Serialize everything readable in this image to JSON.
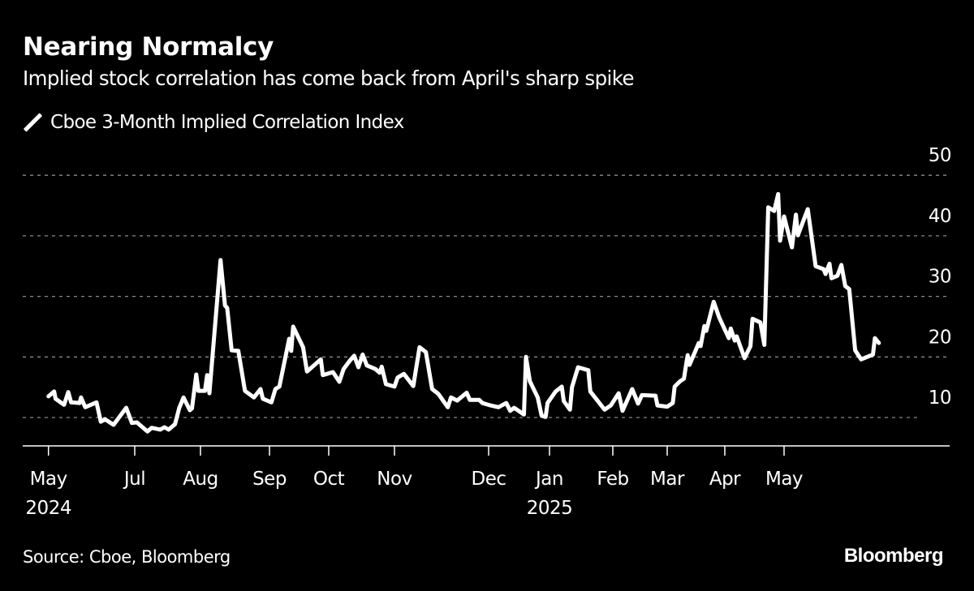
{
  "header": {
    "title": "Nearing Normalcy",
    "subtitle": "Implied stock correlation has come back from April's sharp spike"
  },
  "footer": {
    "source": "Source: Cboe, Bloomberg",
    "logo": "Bloomberg"
  },
  "chart_data": {
    "type": "line",
    "title": "Nearing Normalcy",
    "subtitle": "Implied stock correlation has come back from April's sharp spike",
    "xlabel": "",
    "ylabel": "",
    "ylim": [
      5.3,
      50
    ],
    "y_ticks": [
      10,
      20,
      30,
      40,
      50
    ],
    "y_axis_side": "right",
    "grid": "horizontal dotted",
    "legend_position": "top-left",
    "line_color": "#ffffff",
    "background_color": "#000000",
    "x_ticks": [
      {
        "date": "2024-05-01",
        "label": "May",
        "sublabel": "2024"
      },
      {
        "date": "2024-07-01",
        "label": "Jul",
        "sublabel": ""
      },
      {
        "date": "2024-08-01",
        "label": "Aug",
        "sublabel": ""
      },
      {
        "date": "2024-09-01",
        "label": "Sep",
        "sublabel": ""
      },
      {
        "date": "2024-10-01",
        "label": "Oct",
        "sublabel": ""
      },
      {
        "date": "2024-11-01",
        "label": "Nov",
        "sublabel": ""
      },
      {
        "date": "2024-12-01",
        "label": "Dec",
        "sublabel": ""
      },
      {
        "date": "2025-01-01",
        "label": "Jan",
        "sublabel": "2025"
      },
      {
        "date": "2025-02-01",
        "label": "Feb",
        "sublabel": ""
      },
      {
        "date": "2025-03-01",
        "label": "Mar",
        "sublabel": ""
      },
      {
        "date": "2025-04-01",
        "label": "Apr",
        "sublabel": ""
      },
      {
        "date": "2025-05-01",
        "label": "May",
        "sublabel": ""
      }
    ],
    "series": [
      {
        "name": "Cboe 3-Month Implied Correlation Index",
        "points": [
          [
            "2024-05-01",
            13.5
          ],
          [
            "2024-05-05",
            14.3
          ],
          [
            "2024-05-06",
            13.1
          ],
          [
            "2024-05-12",
            12.1
          ],
          [
            "2024-05-15",
            14.2
          ],
          [
            "2024-05-17",
            12.5
          ],
          [
            "2024-05-23",
            12.4
          ],
          [
            "2024-05-24",
            13.3
          ],
          [
            "2024-05-27",
            11.7
          ],
          [
            "2024-06-04",
            12.5
          ],
          [
            "2024-06-07",
            9.3
          ],
          [
            "2024-06-10",
            9.7
          ],
          [
            "2024-06-16",
            8.8
          ],
          [
            "2024-06-25",
            11.6
          ],
          [
            "2024-06-29",
            9.1
          ],
          [
            "2024-07-02",
            9.2
          ],
          [
            "2024-07-07",
            7.7
          ],
          [
            "2024-07-09",
            8.3
          ],
          [
            "2024-07-13",
            8.0
          ],
          [
            "2024-07-15",
            8.4
          ],
          [
            "2024-07-17",
            8.0
          ],
          [
            "2024-07-20",
            8.9
          ],
          [
            "2024-07-22",
            11.6
          ],
          [
            "2024-07-24",
            13.3
          ],
          [
            "2024-07-27",
            11.2
          ],
          [
            "2024-07-28",
            11.5
          ],
          [
            "2024-07-30",
            17.1
          ],
          [
            "2024-07-31",
            14.4
          ],
          [
            "2024-08-03",
            14.4
          ],
          [
            "2024-08-04",
            17.0
          ],
          [
            "2024-08-05",
            14.0
          ],
          [
            "2024-08-10",
            36.0
          ],
          [
            "2024-08-12",
            28.5
          ],
          [
            "2024-08-13",
            28.1
          ],
          [
            "2024-08-15",
            21.1
          ],
          [
            "2024-08-18",
            21.0
          ],
          [
            "2024-08-21",
            14.4
          ],
          [
            "2024-08-25",
            13.3
          ],
          [
            "2024-08-28",
            14.7
          ],
          [
            "2024-08-29",
            13.1
          ],
          [
            "2024-09-02",
            12.5
          ],
          [
            "2024-09-04",
            14.7
          ],
          [
            "2024-09-06",
            15.1
          ],
          [
            "2024-09-11",
            23.0
          ],
          [
            "2024-09-12",
            21.0
          ],
          [
            "2024-09-13",
            25.0
          ],
          [
            "2024-09-18",
            21.6
          ],
          [
            "2024-09-20",
            17.6
          ],
          [
            "2024-09-27",
            19.6
          ],
          [
            "2024-09-28",
            17.0
          ],
          [
            "2024-10-03",
            17.5
          ],
          [
            "2024-10-06",
            15.9
          ],
          [
            "2024-10-08",
            18.0
          ],
          [
            "2024-10-11",
            19.4
          ],
          [
            "2024-10-13",
            20.2
          ],
          [
            "2024-10-15",
            18.3
          ],
          [
            "2024-10-17",
            20.4
          ],
          [
            "2024-10-19",
            18.6
          ],
          [
            "2024-10-23",
            18.0
          ],
          [
            "2024-10-25",
            17.4
          ],
          [
            "2024-10-26",
            18.4
          ],
          [
            "2024-10-28",
            15.5
          ],
          [
            "2024-11-01",
            15.1
          ],
          [
            "2024-11-02",
            16.6
          ],
          [
            "2024-11-04",
            17.2
          ],
          [
            "2024-11-07",
            15.2
          ],
          [
            "2024-11-09",
            21.6
          ],
          [
            "2024-11-11",
            20.8
          ],
          [
            "2024-11-13",
            14.7
          ],
          [
            "2024-11-15",
            13.9
          ],
          [
            "2024-11-18",
            11.7
          ],
          [
            "2024-11-19",
            13.3
          ],
          [
            "2024-11-21",
            12.8
          ],
          [
            "2024-11-24",
            14.1
          ],
          [
            "2024-11-25",
            12.9
          ],
          [
            "2024-11-28",
            12.9
          ],
          [
            "2024-11-29",
            12.4
          ],
          [
            "2024-12-02",
            12.0
          ],
          [
            "2024-12-06",
            11.7
          ],
          [
            "2024-12-10",
            12.4
          ],
          [
            "2024-12-12",
            11.1
          ],
          [
            "2024-12-14",
            11.6
          ],
          [
            "2024-12-19",
            10.5
          ],
          [
            "2024-12-20",
            20.0
          ],
          [
            "2024-12-22",
            16.0
          ],
          [
            "2024-12-26",
            13.3
          ],
          [
            "2024-12-28",
            10.3
          ],
          [
            "2024-12-30",
            10.1
          ],
          [
            "2024-12-31",
            12.4
          ],
          [
            "2025-01-04",
            14.3
          ],
          [
            "2025-01-07",
            15.1
          ],
          [
            "2025-01-08",
            12.7
          ],
          [
            "2025-01-11",
            11.3
          ],
          [
            "2025-01-12",
            15.0
          ],
          [
            "2025-01-15",
            18.3
          ],
          [
            "2025-01-20",
            17.8
          ],
          [
            "2025-01-21",
            14.3
          ],
          [
            "2025-01-28",
            11.3
          ],
          [
            "2025-01-31",
            12.0
          ],
          [
            "2025-02-04",
            14.0
          ],
          [
            "2025-02-06",
            11.1
          ],
          [
            "2025-02-11",
            14.7
          ],
          [
            "2025-02-14",
            12.3
          ],
          [
            "2025-02-16",
            13.7
          ],
          [
            "2025-02-23",
            13.6
          ],
          [
            "2025-02-24",
            12.0
          ],
          [
            "2025-03-01",
            11.8
          ],
          [
            "2025-03-04",
            12.4
          ],
          [
            "2025-03-05",
            15.1
          ],
          [
            "2025-03-08",
            16.0
          ],
          [
            "2025-03-10",
            16.4
          ],
          [
            "2025-03-12",
            20.3
          ],
          [
            "2025-03-13",
            18.7
          ],
          [
            "2025-03-18",
            22.3
          ],
          [
            "2025-03-19",
            21.8
          ],
          [
            "2025-03-21",
            25.1
          ],
          [
            "2025-03-22",
            24.3
          ],
          [
            "2025-03-26",
            29.1
          ],
          [
            "2025-03-29",
            26.5
          ],
          [
            "2025-04-03",
            23.1
          ],
          [
            "2025-04-04",
            24.7
          ],
          [
            "2025-04-06",
            22.7
          ],
          [
            "2025-04-07",
            23.4
          ],
          [
            "2025-04-11",
            19.8
          ],
          [
            "2025-04-14",
            21.8
          ],
          [
            "2025-04-15",
            26.3
          ],
          [
            "2025-04-19",
            25.7
          ],
          [
            "2025-04-21",
            22.0
          ],
          [
            "2025-04-23",
            44.7
          ],
          [
            "2025-04-26",
            44.1
          ],
          [
            "2025-04-28",
            46.9
          ],
          [
            "2025-04-29",
            39.2
          ],
          [
            "2025-05-01",
            43.2
          ],
          [
            "2025-05-05",
            38.1
          ],
          [
            "2025-05-07",
            43.5
          ],
          [
            "2025-05-08",
            40.1
          ],
          [
            "2025-05-13",
            44.4
          ],
          [
            "2025-05-17",
            35.0
          ],
          [
            "2025-05-21",
            34.5
          ],
          [
            "2025-05-22",
            33.7
          ],
          [
            "2025-05-24",
            35.4
          ],
          [
            "2025-05-25",
            33.0
          ],
          [
            "2025-05-28",
            33.4
          ],
          [
            "2025-05-30",
            35.2
          ],
          [
            "2025-06-01",
            31.7
          ],
          [
            "2025-06-03",
            31.2
          ],
          [
            "2025-06-06",
            21.1
          ],
          [
            "2025-06-09",
            19.6
          ],
          [
            "2025-06-15",
            20.4
          ],
          [
            "2025-06-16",
            23.1
          ],
          [
            "2025-06-18",
            22.3
          ]
        ]
      }
    ]
  }
}
